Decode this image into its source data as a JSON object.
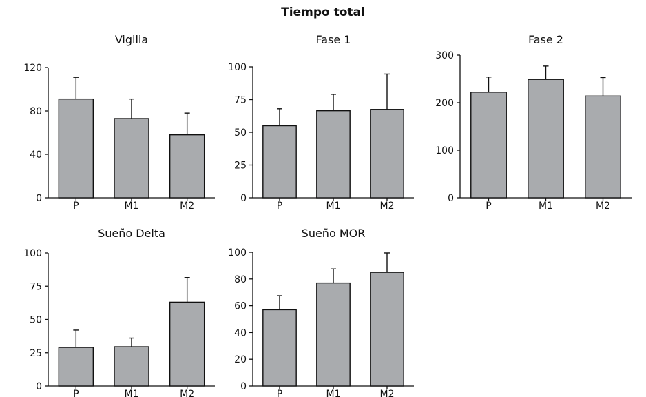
{
  "title": "Tiempo total",
  "colors": {
    "bar_fill": "#a9abae",
    "stroke": "#111111"
  },
  "chart_data": [
    {
      "type": "bar",
      "title": "Vigilia",
      "categories": [
        "P",
        "M1",
        "M2"
      ],
      "values": [
        91,
        73,
        58
      ],
      "error_upper": [
        111,
        91,
        78
      ],
      "ylim": [
        0,
        120
      ],
      "yticks": [
        0,
        40,
        80,
        120
      ],
      "xlabel": "",
      "ylabel": "",
      "grid": false
    },
    {
      "type": "bar",
      "title": "Fase 1",
      "categories": [
        "P",
        "M1",
        "M2"
      ],
      "values": [
        55,
        66.5,
        67.5
      ],
      "error_upper": [
        68,
        79,
        94.5
      ],
      "ylim": [
        0,
        100
      ],
      "yticks": [
        0,
        25,
        50,
        75,
        100
      ],
      "xlabel": "",
      "ylabel": "",
      "grid": false
    },
    {
      "type": "bar",
      "title": "Fase 2",
      "categories": [
        "P",
        "M1",
        "M2"
      ],
      "values": [
        222,
        249,
        214
      ],
      "error_upper": [
        254,
        277,
        253
      ],
      "ylim": [
        0,
        300
      ],
      "yticks": [
        0,
        100,
        200,
        300
      ],
      "xlabel": "",
      "ylabel": "",
      "grid": false
    },
    {
      "type": "bar",
      "title": "Sueño Delta",
      "categories": [
        "P",
        "M1",
        "M2"
      ],
      "values": [
        29,
        29.5,
        63
      ],
      "error_upper": [
        42,
        36,
        81.5
      ],
      "ylim": [
        0,
        100
      ],
      "yticks": [
        0,
        25,
        50,
        75,
        100
      ],
      "xlabel": "",
      "ylabel": "",
      "grid": false
    },
    {
      "type": "bar",
      "title": "Sueño MOR",
      "categories": [
        "P",
        "M1",
        "M2"
      ],
      "values": [
        57,
        77,
        85
      ],
      "error_upper": [
        67.5,
        87.5,
        99.5
      ],
      "ylim": [
        0,
        100
      ],
      "yticks": [
        0,
        20,
        40,
        60,
        80,
        100
      ],
      "xlabel": "",
      "ylabel": "",
      "grid": false
    }
  ]
}
